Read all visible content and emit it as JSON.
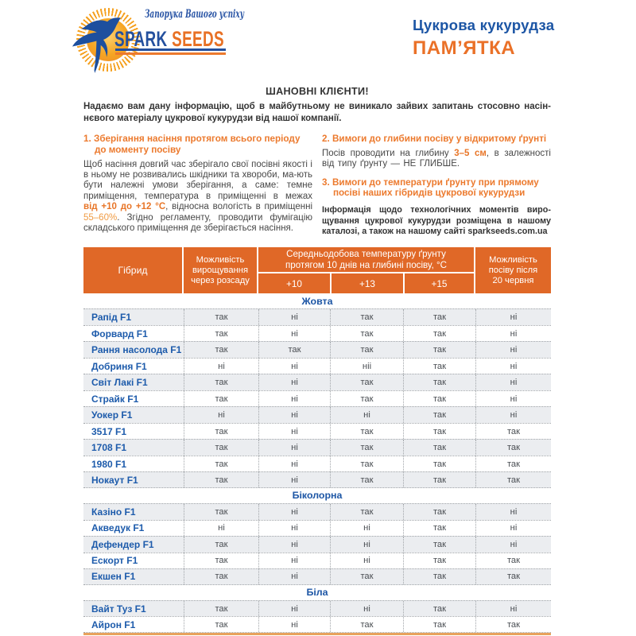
{
  "logo": {
    "slogan": "Запорука Вашого успіху",
    "brand_spark": "SPARK",
    "brand_seeds": "SEEDS"
  },
  "header": {
    "subtitle": "Цукрова кукурудза",
    "title": "ПАМ’ЯТКА"
  },
  "intro": {
    "heading": "ШАНОВНІ КЛІЄНТИ!",
    "body": "Надаємо вам дану інформацію, щоб в майбутньому не виникало зайвих запитань стосовно насін-нєвого матеріалу цукрової кукурудзи від нашої компанії."
  },
  "sections": {
    "storage": {
      "title": "1. Зберігання насіння протягом всього періоду до моменту посіву",
      "body_1": "Щоб насіння довгий час зберігало свої посівні якості і в ньому не розвивались шкідники та хвороби, ма-ють бути належні умови зберігання, а саме: темне приміщення, температура в приміщенні в межах ",
      "temp_range": "від +10 до +12 °С",
      "body_2": ", відносна вологість в приміщенні ",
      "humidity": "55–60%",
      "body_3": ". Згідно регламенту, проводити фумігацію складського приміщення де зберігається насіння."
    },
    "depth": {
      "title": "2. Вимоги до глибини посіву у відкритому ґрунті",
      "body_1": "Посів проводити на глибину ",
      "depth_range": "3–5 см",
      "body_2": ", в залежності від типу ґрунту — НЕ ГЛИБШЕ."
    },
    "temperature": {
      "title": "3. Вимоги до температури ґрунту при прямому посіві наших гібридів цукрової кукурудзи",
      "note": "Інформація щодо технологічних моментів виро­щування цукрової кукурудзи розміщена в нашому каталозі, а також на нашому сайті sparkseeds.com.ua"
    }
  },
  "table": {
    "header": {
      "col_hybrid": "Гібрид",
      "col_seedling": "Можливість вирощування через розсаду",
      "col_temp_span": "Середньодобова температуру ґрунту протягом 10 днів на глибині посіву, °С",
      "temps": [
        "+10",
        "+13",
        "+15"
      ],
      "col_after": "Можливість посіву після 20 червня"
    },
    "groups": [
      {
        "label": "Жовта",
        "rows": [
          [
            "Рапід F1",
            "так",
            "ні",
            "так",
            "так",
            "ні"
          ],
          [
            "Форвард F1",
            "так",
            "ні",
            "так",
            "так",
            "ні"
          ],
          [
            "Рання насолода F1",
            "так",
            "так",
            "так",
            "так",
            "ні"
          ],
          [
            "Добриня F1",
            "ні",
            "ні",
            "ніі",
            "так",
            "ні"
          ],
          [
            "Світ Лакі F1",
            "так",
            "ні",
            "так",
            "так",
            "ні"
          ],
          [
            "Страйк F1",
            "так",
            "ні",
            "так",
            "так",
            "ні"
          ],
          [
            "Уокер F1",
            "ні",
            "ні",
            "ні",
            "так",
            "ні"
          ],
          [
            "3517 F1",
            "так",
            "ні",
            "так",
            "так",
            "так"
          ],
          [
            "1708 F1",
            "так",
            "ні",
            "так",
            "так",
            "так"
          ],
          [
            "1980 F1",
            "так",
            "ні",
            "так",
            "так",
            "так"
          ],
          [
            "Нокаут F1",
            "так",
            "ні",
            "так",
            "так",
            "так"
          ]
        ]
      },
      {
        "label": "Біколорна",
        "rows": [
          [
            "Казіно F1",
            "так",
            "ні",
            "так",
            "так",
            "ні"
          ],
          [
            "Акведук F1",
            "ні",
            "ні",
            "ні",
            "так",
            "ні"
          ],
          [
            "Дефендер F1",
            "так",
            "ні",
            "ні",
            "так",
            "ні"
          ],
          [
            "Ескорт F1",
            "так",
            "ні",
            "ні",
            "так",
            "так"
          ],
          [
            "Екшен F1",
            "так",
            "ні",
            "так",
            "так",
            "так"
          ]
        ]
      },
      {
        "label": "Біла",
        "rows": [
          [
            "Вайт Туз F1",
            "так",
            "ні",
            "ні",
            "так",
            "ні"
          ],
          [
            "Айрон F1",
            "так",
            "ні",
            "так",
            "так",
            "так"
          ]
        ]
      }
    ]
  }
}
